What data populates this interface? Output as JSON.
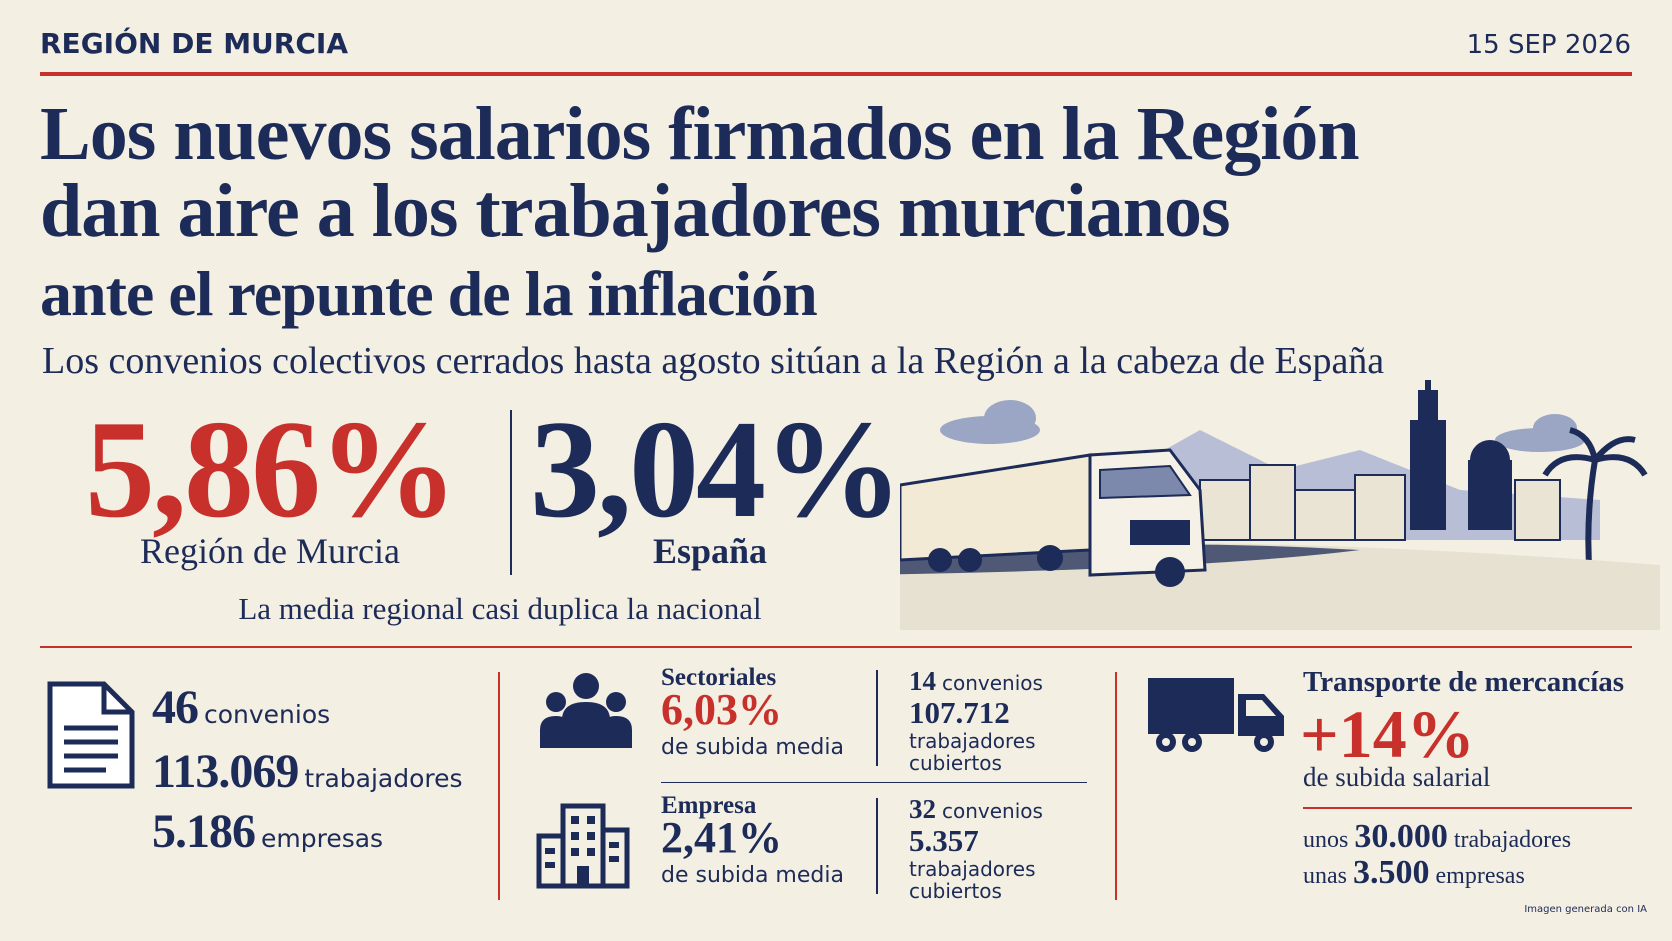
{
  "header": {
    "region": "REGIÓN DE MURCIA",
    "date": "15 SEP 2026"
  },
  "headline": [
    "Los nuevos salarios firmados en la Región",
    "dan aire a los trabajadores murcianos",
    "ante el repunte de la inflación"
  ],
  "subtitle": "Los convenios colectivos cerrados hasta agosto sitúan a la Región a la cabeza de España",
  "comparison": {
    "murcia": {
      "value": "5,86%",
      "label": "Región de Murcia"
    },
    "spain": {
      "value": "3,04%",
      "label": "España"
    },
    "note": "La media regional casi duplica la nacional"
  },
  "totals": [
    {
      "number": "46",
      "label": "convenios"
    },
    {
      "number": "113.069",
      "label": "trabajadores"
    },
    {
      "number": "5.186",
      "label": "empresas"
    }
  ],
  "segments": [
    {
      "name": "Sectoriales",
      "rise": "6,03%",
      "rise_label": "de subida media",
      "agreements": "14",
      "agreements_label": "convenios",
      "workers": "107.712",
      "workers_label": "trabajadores cubiertos"
    },
    {
      "name": "Empresa",
      "rise": "2,41%",
      "rise_label": "de subida media",
      "agreements": "32",
      "agreements_label": "convenios",
      "workers": "5.357",
      "workers_label": "trabajadores cubiertos"
    }
  ],
  "transport": {
    "title": "Transporte de mercancías",
    "rise": "+14%",
    "rise_label": "de subida salarial",
    "workers": {
      "prefix": "unos",
      "number": "30.000",
      "label": "trabajadores"
    },
    "companies": {
      "prefix": "unas",
      "number": "3.500",
      "label": "empresas"
    }
  },
  "footer": "Imagen generada con IA"
}
